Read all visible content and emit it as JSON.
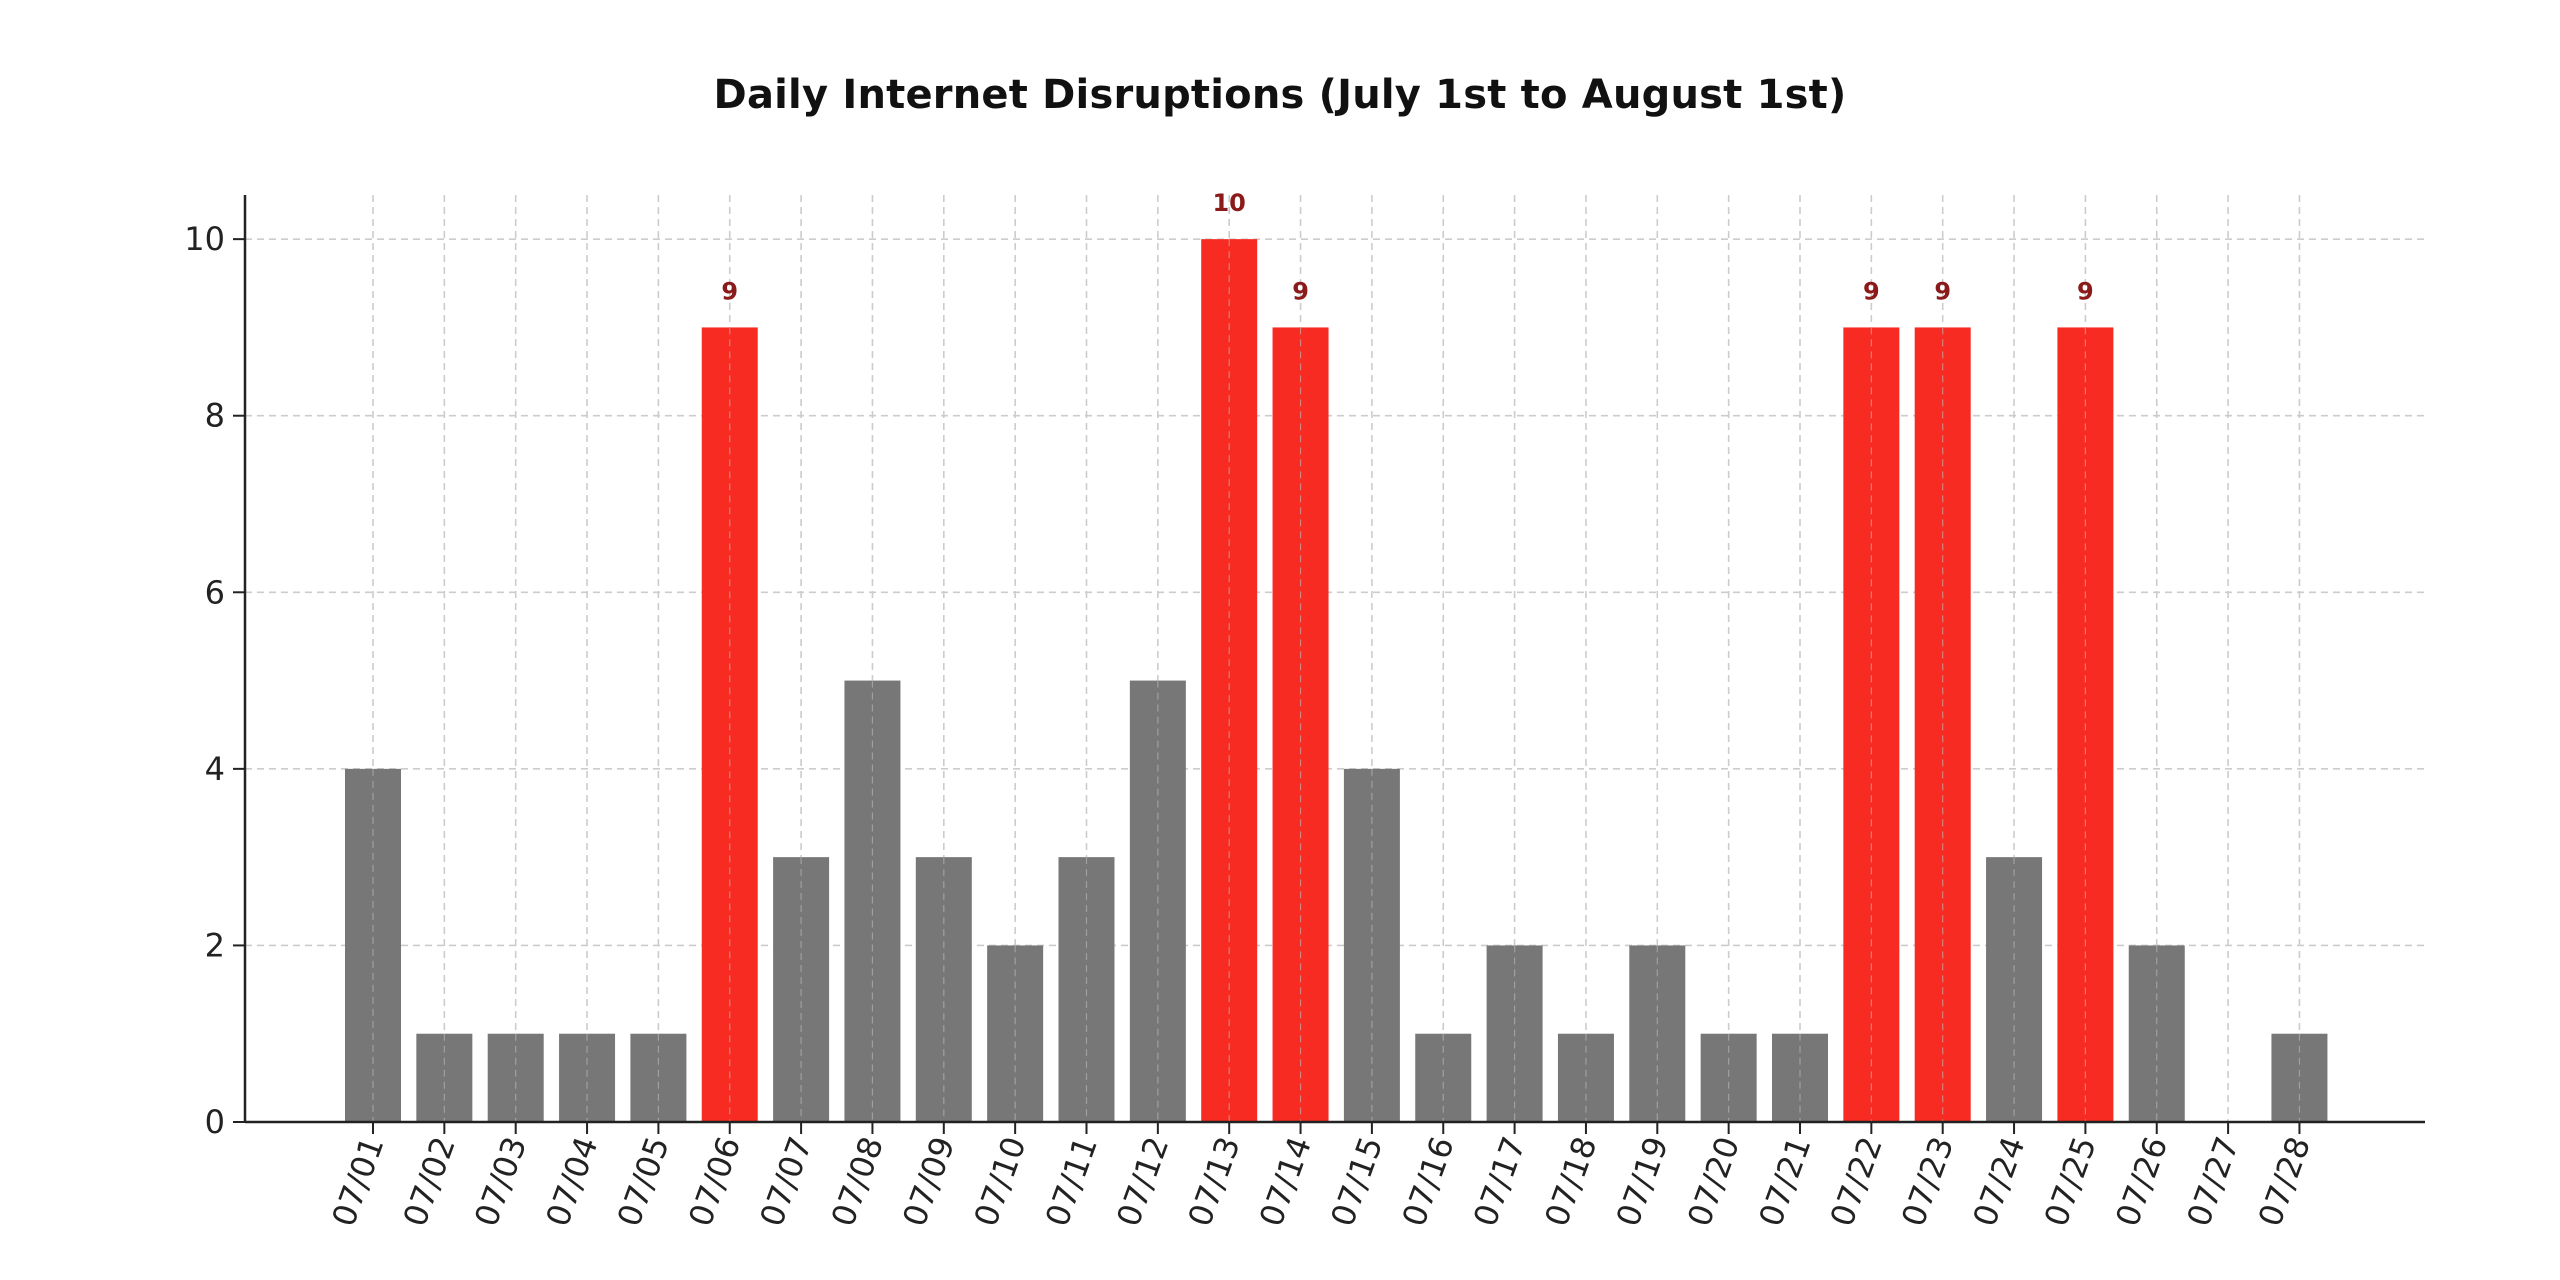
{
  "chart_data": {
    "type": "bar",
    "title": "Daily Internet Disruptions (July 1st to August 1st)",
    "xlabel": "",
    "ylabel": "",
    "categories": [
      "07/01",
      "07/02",
      "07/03",
      "07/04",
      "07/05",
      "07/06",
      "07/07",
      "07/08",
      "07/09",
      "07/10",
      "07/11",
      "07/12",
      "07/13",
      "07/14",
      "07/15",
      "07/16",
      "07/17",
      "07/18",
      "07/19",
      "07/20",
      "07/21",
      "07/22",
      "07/23",
      "07/24",
      "07/25",
      "07/26",
      "07/27",
      "07/28"
    ],
    "values": [
      4,
      1,
      1,
      1,
      1,
      9,
      3,
      5,
      3,
      2,
      3,
      5,
      10,
      9,
      4,
      1,
      2,
      1,
      2,
      1,
      1,
      9,
      9,
      3,
      9,
      2,
      0,
      1
    ],
    "highlight_threshold": 9,
    "ylim": [
      0,
      10.5
    ],
    "yticks": [
      0,
      2,
      4,
      6,
      8,
      10
    ],
    "grid": true,
    "colors": {
      "normal_bar": "#777777",
      "highlight_bar": "#f82b23",
      "value_label": "#8b1a1a",
      "grid": "#cccccc",
      "axis": "#222222"
    }
  }
}
